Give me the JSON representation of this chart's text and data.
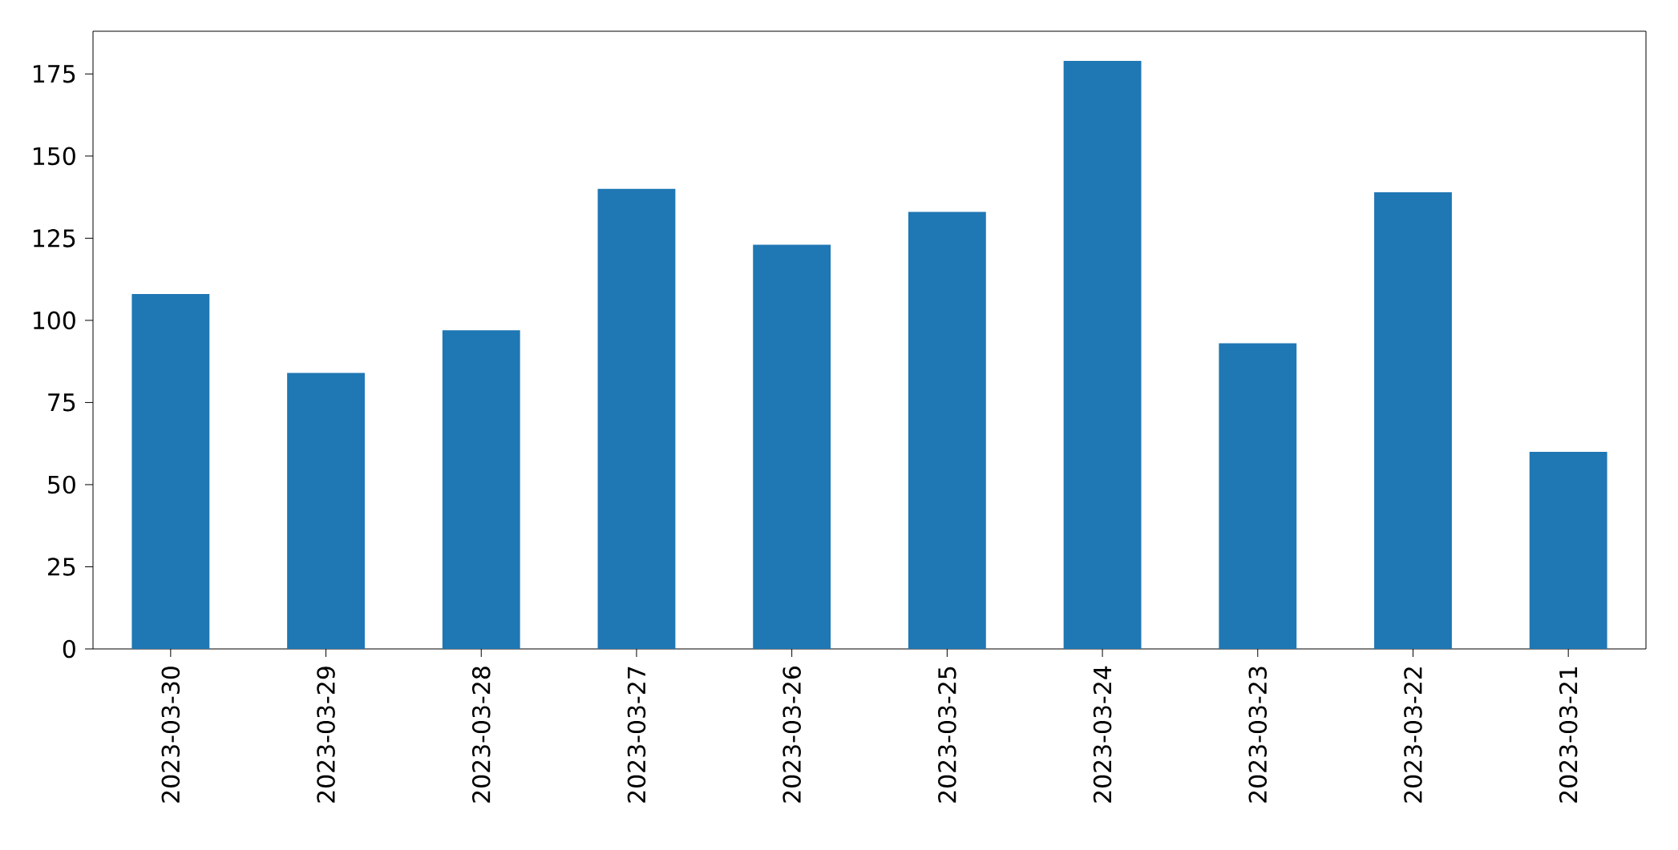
{
  "chart_data": {
    "type": "bar",
    "categories": [
      "2023-03-30",
      "2023-03-29",
      "2023-03-28",
      "2023-03-27",
      "2023-03-26",
      "2023-03-25",
      "2023-03-24",
      "2023-03-23",
      "2023-03-22",
      "2023-03-21"
    ],
    "values": [
      108,
      84,
      97,
      140,
      123,
      133,
      179,
      93,
      139,
      60
    ],
    "color": "#1f77b4",
    "ylim": [
      0,
      188
    ],
    "yticks": [
      0,
      25,
      50,
      75,
      100,
      125,
      150,
      175
    ]
  }
}
